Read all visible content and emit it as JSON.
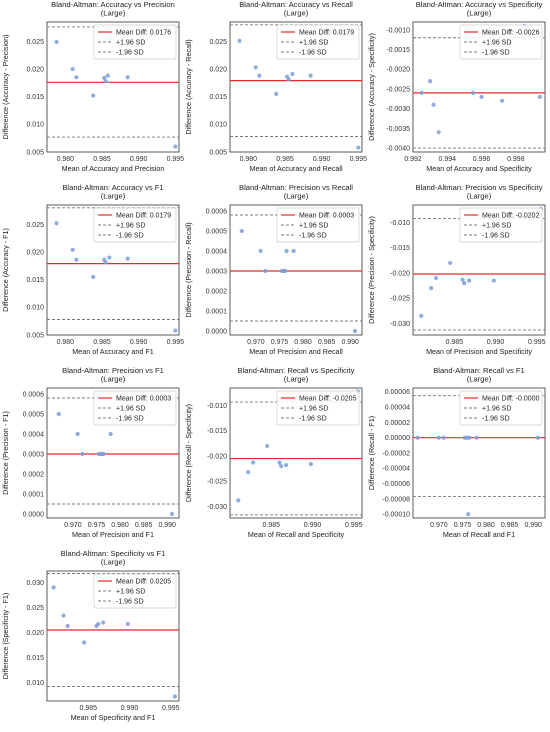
{
  "chart_data": [
    {
      "type": "scatter",
      "title": "Bland-Altman: Accuracy vs Precision\n(Large)",
      "xlabel": "Mean of Accuracy and Precision",
      "ylabel": "Difference (Accuracy - Precision)",
      "xlim": [
        0.9775,
        0.9955
      ],
      "ylim": [
        0.005,
        0.0285
      ],
      "xticks": [
        0.98,
        0.985,
        0.99,
        0.995
      ],
      "yticks": [
        0.005,
        0.01,
        0.015,
        0.02,
        0.025
      ],
      "x": [
        0.9788,
        0.981,
        0.9815,
        0.9838,
        0.9853,
        0.9855,
        0.9858,
        0.9885,
        0.995
      ],
      "y": [
        0.0249,
        0.02,
        0.0185,
        0.0152,
        0.0184,
        0.0178,
        0.0188,
        0.0185,
        0.006
      ],
      "mean_diff": 0.0176,
      "upper_loa": 0.0276,
      "lower_loa": 0.0077,
      "legend": [
        "Mean Diff: 0.0176",
        "+1.96 SD",
        "-1.96 SD"
      ],
      "legend_position": "upper right"
    },
    {
      "type": "scatter",
      "title": "Bland-Altman: Accuracy vs Recall\n(Large)",
      "xlabel": "Mean of Accuracy and Recall",
      "ylabel": "Difference (Accuracy - Recall)",
      "xlim": [
        0.9775,
        0.9955
      ],
      "ylim": [
        0.005,
        0.0285
      ],
      "xticks": [
        0.98,
        0.985,
        0.99,
        0.995
      ],
      "yticks": [
        0.005,
        0.01,
        0.015,
        0.02,
        0.025
      ],
      "x": [
        0.9788,
        0.981,
        0.9815,
        0.9838,
        0.9853,
        0.9855,
        0.986,
        0.9885,
        0.995
      ],
      "y": [
        0.0251,
        0.0203,
        0.0188,
        0.0155,
        0.0186,
        0.0181,
        0.0191,
        0.0188,
        0.0058
      ],
      "mean_diff": 0.0179,
      "upper_loa": 0.028,
      "lower_loa": 0.0078,
      "legend": [
        "Mean Diff: 0.0179",
        "+1.96 SD",
        "-1.96 SD"
      ],
      "legend_position": "upper right"
    },
    {
      "type": "scatter",
      "title": "Bland-Altman: Accuracy vs Specificity\n(Large)",
      "xlabel": "Mean of Accuracy and Specificity",
      "ylabel": "Difference (Accuracy - Specificity)",
      "xlim": [
        0.992,
        0.9997
      ],
      "ylim": [
        -0.0041,
        -0.0008
      ],
      "xticks": [
        0.992,
        0.994,
        0.996,
        0.998
      ],
      "yticks": [
        -0.004,
        -0.0035,
        -0.003,
        -0.0025,
        -0.002,
        -0.0015,
        -0.001
      ],
      "x": [
        0.9925,
        0.993,
        0.9932,
        0.9935,
        0.9955,
        0.996,
        0.9972,
        0.9985,
        0.9994
      ],
      "y": [
        -0.0026,
        -0.0023,
        -0.0029,
        -0.0036,
        -0.0026,
        -0.0027,
        -0.0028,
        -0.0009,
        -0.0027
      ],
      "mean_diff": -0.0026,
      "upper_loa": -0.0012,
      "lower_loa": -0.004,
      "legend": [
        "Mean Diff: -0.0026",
        "+1.96 SD",
        "-1.96 SD"
      ],
      "legend_position": "upper right"
    },
    {
      "type": "scatter",
      "title": "Bland-Altman: Accuracy vs F1\n(Large)",
      "xlabel": "Mean of Accuracy and F1",
      "ylabel": "Difference (Accuracy - F1)",
      "xlim": [
        0.9775,
        0.9955
      ],
      "ylim": [
        0.005,
        0.0285
      ],
      "xticks": [
        0.98,
        0.985,
        0.99,
        0.995
      ],
      "yticks": [
        0.005,
        0.01,
        0.015,
        0.02,
        0.025
      ],
      "x": [
        0.9788,
        0.981,
        0.9815,
        0.9838,
        0.9853,
        0.9855,
        0.986,
        0.9885,
        0.995
      ],
      "y": [
        0.0252,
        0.0204,
        0.0186,
        0.0155,
        0.0186,
        0.0181,
        0.019,
        0.0188,
        0.0058
      ],
      "mean_diff": 0.0179,
      "upper_loa": 0.028,
      "lower_loa": 0.0078,
      "legend": [
        "Mean Diff: 0.0179",
        "+1.96 SD",
        "-1.96 SD"
      ],
      "legend_position": "upper right"
    },
    {
      "type": "scatter",
      "title": "Bland-Altman: Precision vs Recall\n(Large)",
      "xlabel": "Mean of Precision and Recall",
      "ylabel": "Difference (Precision - Recall)",
      "xlim": [
        0.9645,
        0.9925
      ],
      "ylim": [
        -2e-05,
        0.00063
      ],
      "xticks": [
        0.97,
        0.975,
        0.98,
        0.985,
        0.99
      ],
      "yticks": [
        0.0,
        0.0001,
        0.0002,
        0.0003,
        0.0004,
        0.0005,
        0.0006
      ],
      "x": [
        0.967,
        0.971,
        0.972,
        0.9755,
        0.976,
        0.9762,
        0.9765,
        0.978,
        0.991
      ],
      "y": [
        0.0005,
        0.0004,
        0.0003,
        0.0003,
        0.0003,
        0.0003,
        0.0004,
        0.0004,
        0.0
      ],
      "mean_diff": 0.0003,
      "upper_loa": 0.00058,
      "lower_loa": 5e-05,
      "legend": [
        "Mean Diff: 0.0003",
        "+1.96 SD",
        "-1.96 SD"
      ],
      "legend_position": "upper right"
    },
    {
      "type": "scatter",
      "title": "Bland-Altman: Precision vs Specificity\n(Large)",
      "xlabel": "Mean of Precision and Specificity",
      "ylabel": "Difference (Precision - Specificity)",
      "xlim": [
        0.98,
        0.996
      ],
      "ylim": [
        -0.0323,
        -0.0065
      ],
      "xticks": [
        0.985,
        0.99,
        0.995
      ],
      "yticks": [
        -0.03,
        -0.025,
        -0.02,
        -0.015,
        -0.01
      ],
      "x": [
        0.981,
        0.9822,
        0.9828,
        0.9845,
        0.986,
        0.9862,
        0.9868,
        0.9898,
        0.9955
      ],
      "y": [
        -0.0285,
        -0.023,
        -0.021,
        -0.018,
        -0.0213,
        -0.022,
        -0.0215,
        -0.0215,
        -0.0073
      ],
      "mean_diff": -0.0202,
      "upper_loa": -0.0092,
      "lower_loa": -0.0313,
      "legend": [
        "Mean Diff: -0.0202",
        "+1.96 SD",
        "-1.96 SD"
      ],
      "legend_position": "upper right"
    },
    {
      "type": "scatter",
      "title": "Bland-Altman: Precision vs F1\n(Large)",
      "xlabel": "Mean of Precision and F1",
      "ylabel": "Difference (Precision - F1)",
      "xlim": [
        0.9645,
        0.9925
      ],
      "ylim": [
        -2e-05,
        0.00063
      ],
      "xticks": [
        0.97,
        0.975,
        0.98,
        0.985,
        0.99
      ],
      "yticks": [
        0.0,
        0.0001,
        0.0002,
        0.0003,
        0.0004,
        0.0005,
        0.0006
      ],
      "x": [
        0.967,
        0.971,
        0.972,
        0.9755,
        0.976,
        0.9762,
        0.9765,
        0.978,
        0.991
      ],
      "y": [
        0.0005,
        0.0004,
        0.0003,
        0.0003,
        0.0003,
        0.0003,
        0.0003,
        0.0004,
        0.0
      ],
      "mean_diff": 0.0003,
      "upper_loa": 0.00058,
      "lower_loa": 5e-05,
      "legend": [
        "Mean Diff: 0.0003",
        "+1.96 SD",
        "-1.96 SD"
      ],
      "legend_position": "upper right"
    },
    {
      "type": "scatter",
      "title": "Bland-Altman: Recall vs Specificity\n(Large)",
      "xlabel": "Mean of Recall and Specificity",
      "ylabel": "Difference (Recall - Specificity)",
      "xlim": [
        0.98,
        0.996
      ],
      "ylim": [
        -0.0323,
        -0.0065
      ],
      "xticks": [
        0.985,
        0.99,
        0.995
      ],
      "yticks": [
        -0.03,
        -0.025,
        -0.02,
        -0.015,
        -0.01
      ],
      "x": [
        0.981,
        0.9822,
        0.9828,
        0.9845,
        0.986,
        0.9862,
        0.9868,
        0.9898,
        0.9955
      ],
      "y": [
        -0.0288,
        -0.0232,
        -0.0213,
        -0.018,
        -0.0213,
        -0.022,
        -0.0218,
        -0.0216,
        -0.0072
      ],
      "mean_diff": -0.0205,
      "upper_loa": -0.0093,
      "lower_loa": -0.0317,
      "legend": [
        "Mean Diff: -0.0205",
        "+1.96 SD",
        "-1.96 SD"
      ],
      "legend_position": "upper right"
    },
    {
      "type": "scatter",
      "title": "Bland-Altman: Recall vs F1\n(Large)",
      "xlabel": "Mean of Recall and F1",
      "ylabel": "Difference (Recall - F1)",
      "xlim": [
        0.9645,
        0.9925
      ],
      "ylim": [
        -0.000105,
        6.5e-05
      ],
      "xticks": [
        0.97,
        0.975,
        0.98,
        0.985,
        0.99
      ],
      "yticks": [
        -0.0001,
        -8e-05,
        -6e-05,
        -4e-05,
        -2e-05,
        0.0,
        2e-05,
        4e-05,
        6e-05
      ],
      "x": [
        0.9655,
        0.97,
        0.971,
        0.9755,
        0.976,
        0.9762,
        0.9765,
        0.978,
        0.991
      ],
      "y": [
        0.0,
        0.0,
        0.0,
        0.0,
        0.0,
        -0.0001,
        0.0,
        0.0,
        0.0
      ],
      "mean_diff": -0.0,
      "upper_loa": 5.5e-05,
      "lower_loa": -7.7e-05,
      "legend": [
        "Mean Diff: -0.0000",
        "+1.96 SD",
        "-1.96 SD"
      ],
      "legend_position": "upper right"
    },
    {
      "type": "scatter",
      "title": "Bland-Altman: Specificity vs F1\n(Large)",
      "xlabel": "Mean of Specificity and F1",
      "ylabel": "Difference (Specificity - F1)",
      "xlim": [
        0.98,
        0.996
      ],
      "ylim": [
        0.0063,
        0.0323
      ],
      "xticks": [
        0.985,
        0.99,
        0.995
      ],
      "yticks": [
        0.01,
        0.015,
        0.02,
        0.025,
        0.03
      ],
      "x": [
        0.9808,
        0.982,
        0.9825,
        0.9845,
        0.986,
        0.9862,
        0.9868,
        0.9898,
        0.9955
      ],
      "y": [
        0.029,
        0.0234,
        0.0213,
        0.018,
        0.0213,
        0.0217,
        0.022,
        0.0217,
        0.0072
      ],
      "mean_diff": 0.0205,
      "upper_loa": 0.0318,
      "lower_loa": 0.0092,
      "legend": [
        "Mean Diff: 0.0205",
        "+1.96 SD",
        "-1.96 SD"
      ],
      "legend_position": "upper right"
    }
  ]
}
